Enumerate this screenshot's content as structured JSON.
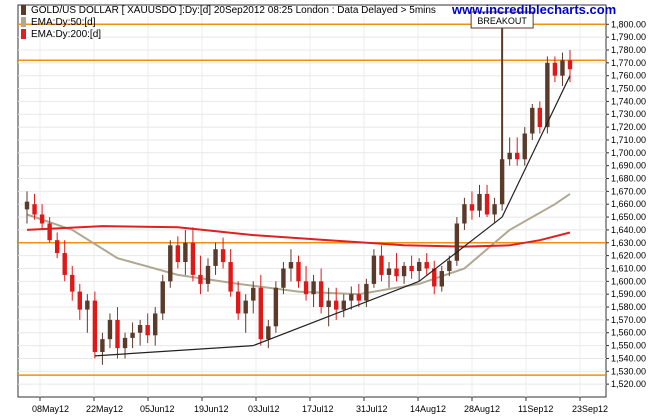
{
  "chart_data": {
    "type": "candlestick",
    "title": "GOLD/US DOLLAR [ XAUUSDO ]:Dy:[d]  20Sep2012 08:25 London : Data Delayed > 5mins",
    "watermark": "www.incrediblecharts.com",
    "legend": [
      {
        "label": "EMA:Dy:50:[d]",
        "color": "#b0a890"
      },
      {
        "label": "EMA:Dy:200:[d]",
        "color": "#e02020"
      }
    ],
    "annotation": "BREAKOUT",
    "ylim": [
      1510,
      1815
    ],
    "y_ticks": [
      1520,
      1530,
      1540,
      1550,
      1560,
      1570,
      1580,
      1590,
      1600,
      1610,
      1620,
      1630,
      1640,
      1650,
      1660,
      1670,
      1680,
      1690,
      1700,
      1710,
      1720,
      1730,
      1740,
      1750,
      1760,
      1770,
      1780,
      1790,
      1800
    ],
    "x_ticks": [
      "08May12",
      "22May12",
      "05Jun12",
      "19Jun12",
      "03Jul12",
      "17Jul12",
      "31Jul12",
      "14Aug12",
      "28Aug12",
      "11Sep12",
      "23Sep12"
    ],
    "horizontal_lines": [
      1800,
      1772,
      1630,
      1527
    ],
    "candles": [
      [
        1656,
        1670,
        1645,
        1662
      ],
      [
        1660,
        1668,
        1648,
        1652
      ],
      [
        1652,
        1660,
        1640,
        1645
      ],
      [
        1645,
        1650,
        1630,
        1632
      ],
      [
        1632,
        1638,
        1618,
        1622
      ],
      [
        1622,
        1632,
        1600,
        1605
      ],
      [
        1605,
        1612,
        1585,
        1592
      ],
      [
        1592,
        1598,
        1570,
        1578
      ],
      [
        1578,
        1590,
        1560,
        1585
      ],
      [
        1585,
        1592,
        1540,
        1545
      ],
      [
        1545,
        1560,
        1535,
        1555
      ],
      [
        1555,
        1575,
        1548,
        1570
      ],
      [
        1570,
        1580,
        1540,
        1548
      ],
      [
        1548,
        1560,
        1540,
        1556
      ],
      [
        1556,
        1568,
        1548,
        1560
      ],
      [
        1560,
        1570,
        1550,
        1566
      ],
      [
        1566,
        1575,
        1552,
        1558
      ],
      [
        1558,
        1580,
        1550,
        1575
      ],
      [
        1575,
        1605,
        1570,
        1600
      ],
      [
        1600,
        1632,
        1595,
        1628
      ],
      [
        1628,
        1635,
        1610,
        1615
      ],
      [
        1615,
        1640,
        1605,
        1630
      ],
      [
        1630,
        1642,
        1600,
        1605
      ],
      [
        1605,
        1620,
        1590,
        1598
      ],
      [
        1598,
        1618,
        1592,
        1612
      ],
      [
        1612,
        1630,
        1605,
        1625
      ],
      [
        1625,
        1634,
        1610,
        1615
      ],
      [
        1615,
        1625,
        1588,
        1592
      ],
      [
        1592,
        1600,
        1570,
        1575
      ],
      [
        1575,
        1590,
        1560,
        1585
      ],
      [
        1585,
        1600,
        1575,
        1595
      ],
      [
        1595,
        1605,
        1550,
        1555
      ],
      [
        1555,
        1570,
        1548,
        1565
      ],
      [
        1565,
        1600,
        1560,
        1595
      ],
      [
        1595,
        1615,
        1590,
        1610
      ],
      [
        1610,
        1625,
        1600,
        1615
      ],
      [
        1615,
        1620,
        1595,
        1600
      ],
      [
        1600,
        1612,
        1585,
        1590
      ],
      [
        1590,
        1605,
        1580,
        1600
      ],
      [
        1600,
        1610,
        1575,
        1580
      ],
      [
        1580,
        1595,
        1565,
        1585
      ],
      [
        1585,
        1595,
        1570,
        1578
      ],
      [
        1578,
        1590,
        1572,
        1585
      ],
      [
        1585,
        1596,
        1578,
        1590
      ],
      [
        1590,
        1598,
        1580,
        1585
      ],
      [
        1585,
        1602,
        1580,
        1598
      ],
      [
        1598,
        1625,
        1595,
        1620
      ],
      [
        1620,
        1628,
        1600,
        1605
      ],
      [
        1605,
        1615,
        1595,
        1610
      ],
      [
        1610,
        1622,
        1600,
        1604
      ],
      [
        1604,
        1615,
        1598,
        1612
      ],
      [
        1612,
        1620,
        1602,
        1608
      ],
      [
        1608,
        1618,
        1600,
        1615
      ],
      [
        1615,
        1622,
        1605,
        1610
      ],
      [
        1610,
        1616,
        1590,
        1596
      ],
      [
        1596,
        1612,
        1592,
        1608
      ],
      [
        1608,
        1620,
        1604,
        1616
      ],
      [
        1616,
        1650,
        1612,
        1645
      ],
      [
        1645,
        1665,
        1640,
        1660
      ],
      [
        1660,
        1670,
        1648,
        1655
      ],
      [
        1655,
        1675,
        1650,
        1668
      ],
      [
        1668,
        1675,
        1650,
        1652
      ],
      [
        1652,
        1665,
        1645,
        1660
      ],
      [
        1660,
        1700,
        1655,
        1695
      ],
      [
        1695,
        1712,
        1690,
        1700
      ],
      [
        1700,
        1712,
        1690,
        1695
      ],
      [
        1695,
        1720,
        1690,
        1715
      ],
      [
        1715,
        1738,
        1710,
        1735
      ],
      [
        1735,
        1740,
        1715,
        1720
      ],
      [
        1720,
        1775,
        1715,
        1770
      ],
      [
        1770,
        1775,
        1755,
        1760
      ],
      [
        1760,
        1778,
        1752,
        1772
      ],
      [
        1772,
        1780,
        1755,
        1765
      ]
    ],
    "ema50": [
      [
        0,
        1652
      ],
      [
        6,
        1640
      ],
      [
        12,
        1618
      ],
      [
        20,
        1605
      ],
      [
        28,
        1598
      ],
      [
        36,
        1592
      ],
      [
        44,
        1590
      ],
      [
        52,
        1598
      ],
      [
        58,
        1610
      ],
      [
        64,
        1640
      ],
      [
        70,
        1660
      ],
      [
        72,
        1668
      ]
    ],
    "ema200": [
      [
        0,
        1640
      ],
      [
        10,
        1643
      ],
      [
        20,
        1642
      ],
      [
        30,
        1636
      ],
      [
        40,
        1632
      ],
      [
        50,
        1628
      ],
      [
        58,
        1627
      ],
      [
        64,
        1628
      ],
      [
        68,
        1632
      ],
      [
        72,
        1638
      ]
    ],
    "trendlines": [
      {
        "points": [
          [
            9,
            1542
          ],
          [
            30,
            1550
          ]
        ]
      },
      {
        "points": [
          [
            30,
            1550
          ],
          [
            52,
            1600
          ]
        ]
      },
      {
        "points": [
          [
            52,
            1600
          ],
          [
            63,
            1650
          ]
        ]
      },
      {
        "points": [
          [
            63,
            1650
          ],
          [
            72,
            1760
          ]
        ]
      }
    ],
    "breakout_spike": {
      "x": 63,
      "high": 1803
    }
  }
}
